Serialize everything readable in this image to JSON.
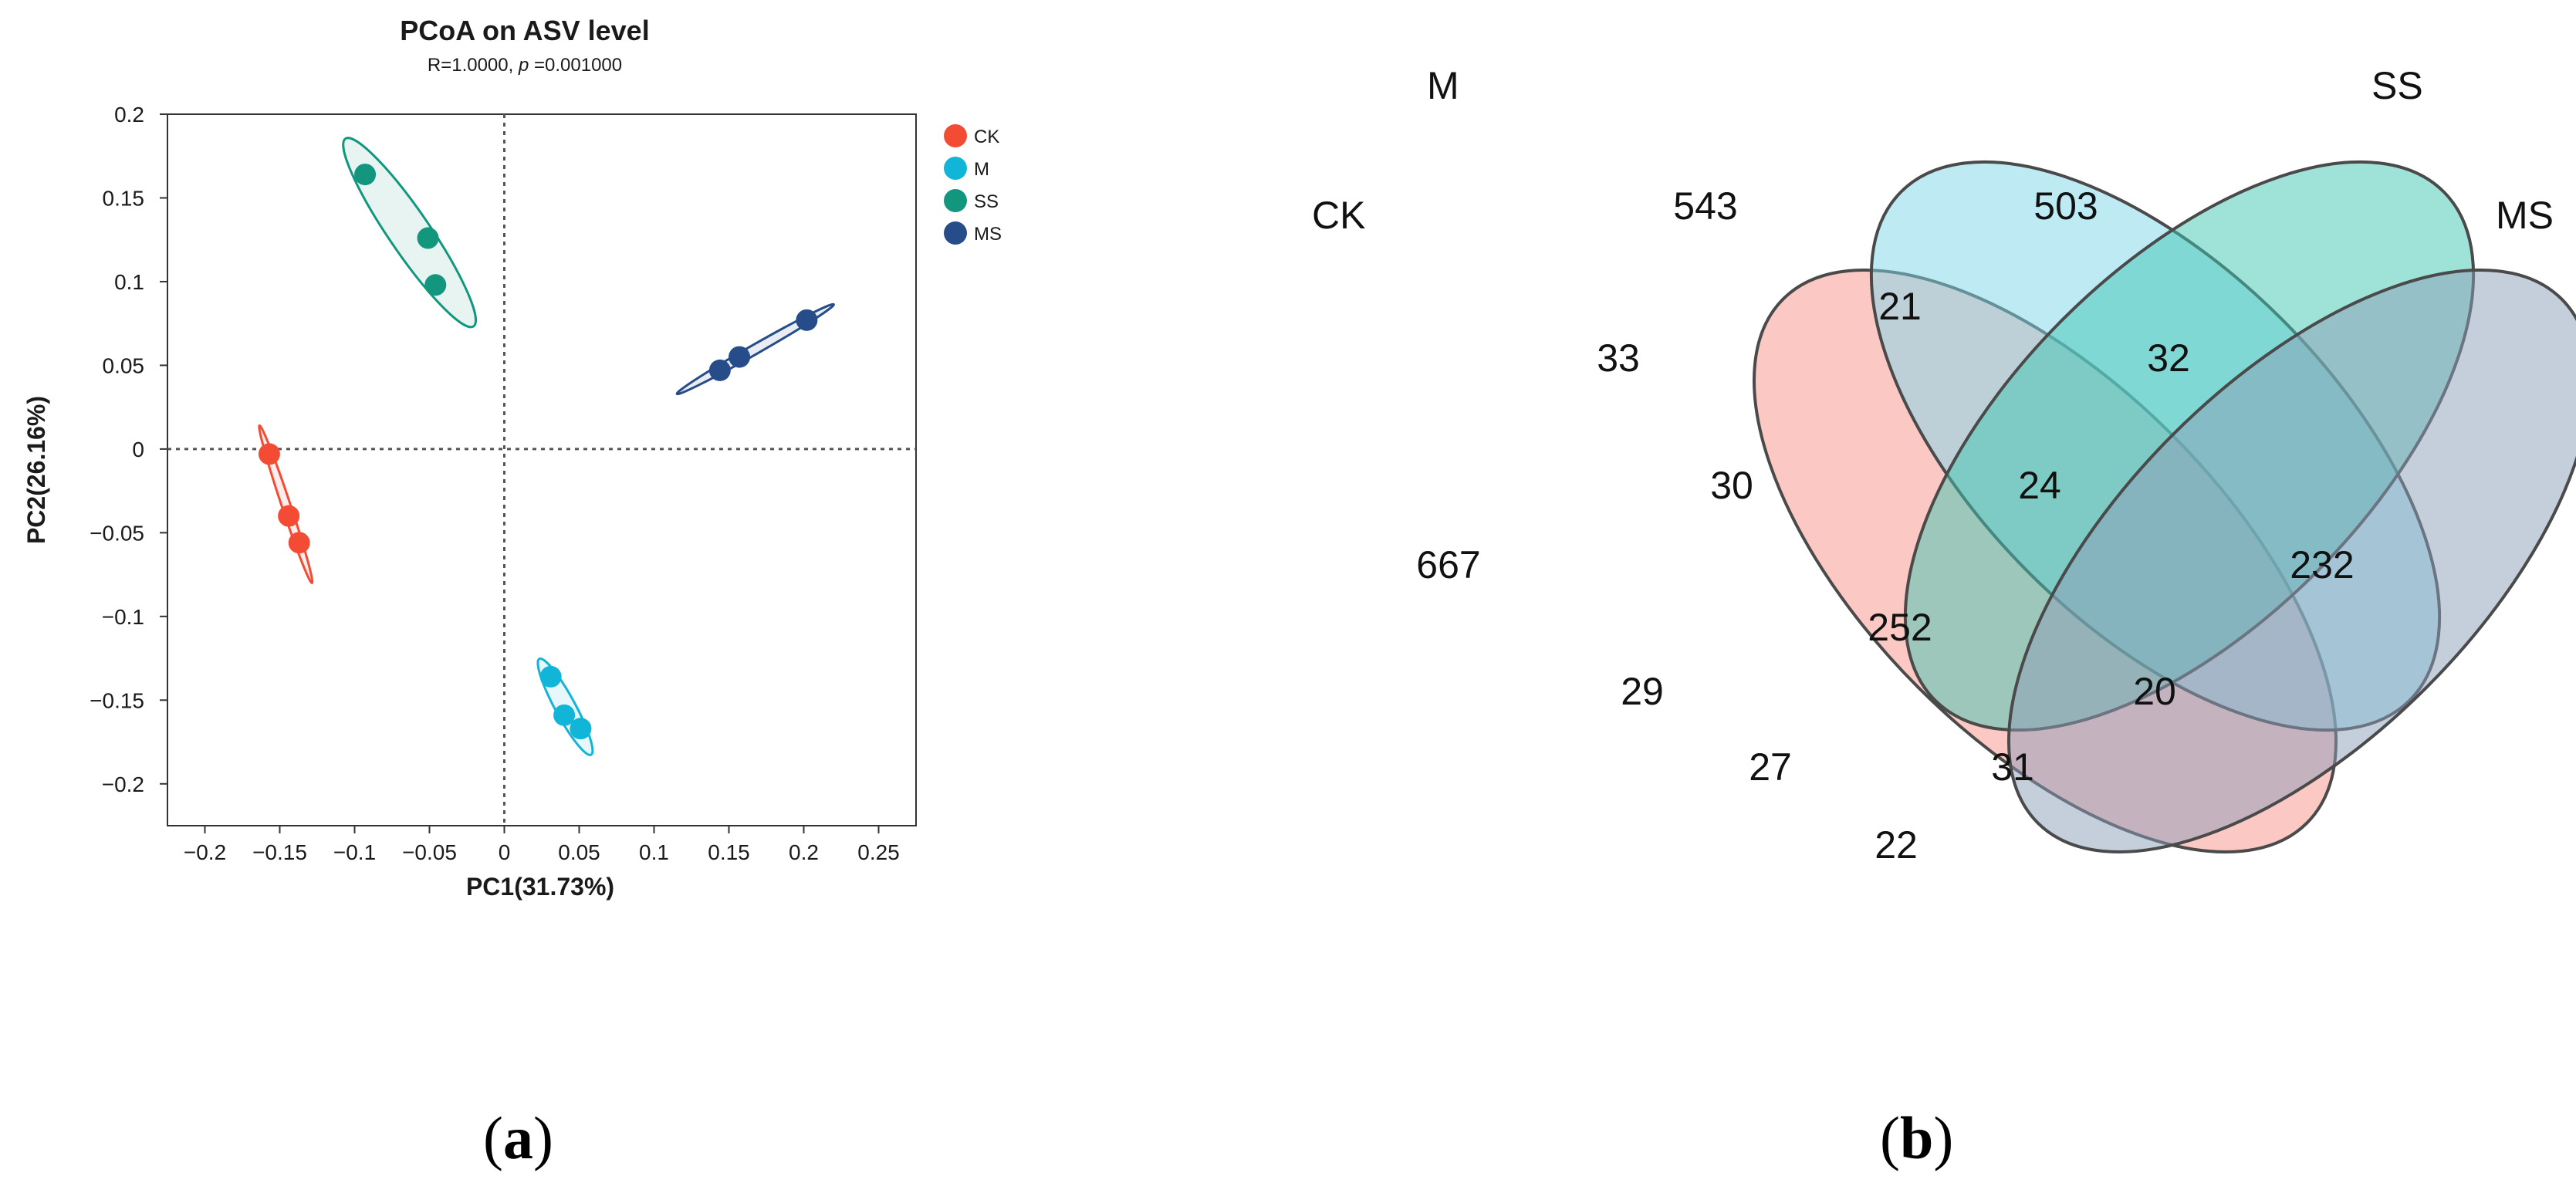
{
  "colors": {
    "CK": "#F44B34",
    "M": "#11B5D8",
    "SS": "#12977E",
    "MS": "#264C8A",
    "venn_CK": "#F9928A",
    "venn_M": "#7DD6EA",
    "venn_SS": "#3FC6B2",
    "venn_MS": "#8C9DB7"
  },
  "chart_data": [
    {
      "type": "scatter",
      "title": "PCoA on ASV level",
      "subtitle_prefix": "R=1.0000, ",
      "subtitle_p": "p",
      "subtitle_suffix": " =0.001000",
      "xlabel": "PC1(31.73%)",
      "ylabel": "PC2(26.16%)",
      "xlim": [
        -0.225,
        0.275
      ],
      "ylim": [
        -0.225,
        0.2
      ],
      "xticks": [
        -0.2,
        -0.15,
        -0.1,
        -0.05,
        0,
        0.05,
        0.1,
        0.15,
        0.2,
        0.25
      ],
      "xtick_labels": [
        "−0.2",
        "−0.15",
        "−0.1",
        "−0.05",
        "0",
        "0.05",
        "0.1",
        "0.15",
        "0.2",
        "0.25"
      ],
      "yticks": [
        0.2,
        0.15,
        0.1,
        0.05,
        0,
        -0.05,
        -0.1,
        -0.15,
        -0.2
      ],
      "ytick_labels": [
        "0.2",
        "0.15",
        "0.1",
        "0.05",
        "0",
        "−0.05",
        "−0.1",
        "−0.15",
        "−0.2"
      ],
      "reference_lines": {
        "x": 0,
        "y": 0,
        "style": "dotted"
      },
      "legend_position": "top-right outside",
      "series": [
        {
          "name": "CK",
          "points": [
            [
              -0.157,
              -0.003
            ],
            [
              -0.144,
              -0.04
            ],
            [
              -0.137,
              -0.056
            ]
          ]
        },
        {
          "name": "M",
          "points": [
            [
              0.031,
              -0.136
            ],
            [
              0.04,
              -0.159
            ],
            [
              0.051,
              -0.167
            ]
          ]
        },
        {
          "name": "SS",
          "points": [
            [
              -0.093,
              0.164
            ],
            [
              -0.051,
              0.126
            ],
            [
              -0.046,
              0.098
            ]
          ]
        },
        {
          "name": "MS",
          "points": [
            [
              0.144,
              0.047
            ],
            [
              0.157,
              0.055
            ],
            [
              0.202,
              0.077
            ]
          ]
        }
      ]
    },
    {
      "type": "venn",
      "sets": [
        "CK",
        "M",
        "SS",
        "MS"
      ],
      "regions": [
        {
          "sets": [
            "CK"
          ],
          "value": 667
        },
        {
          "sets": [
            "M"
          ],
          "value": 543
        },
        {
          "sets": [
            "SS"
          ],
          "value": 503
        },
        {
          "sets": [
            "MS"
          ],
          "value": 232
        },
        {
          "sets": [
            "M",
            "SS"
          ],
          "value": 21
        },
        {
          "sets": [
            "CK",
            "M"
          ],
          "value": 33
        },
        {
          "sets": [
            "SS",
            "MS"
          ],
          "value": 32
        },
        {
          "sets": [
            "CK",
            "M",
            "SS"
          ],
          "value": 30
        },
        {
          "sets": [
            "M",
            "SS",
            "MS"
          ],
          "value": 24
        },
        {
          "sets": [
            "CK",
            "M",
            "SS",
            "MS"
          ],
          "value": 252
        },
        {
          "sets": [
            "CK",
            "SS"
          ],
          "value": 29
        },
        {
          "sets": [
            "M",
            "MS"
          ],
          "value": 20
        },
        {
          "sets": [
            "CK",
            "SS",
            "MS"
          ],
          "value": 27
        },
        {
          "sets": [
            "CK",
            "M",
            "MS"
          ],
          "value": 31
        },
        {
          "sets": [
            "CK",
            "MS"
          ],
          "value": 22
        }
      ]
    }
  ],
  "panel_labels": {
    "a": "a",
    "b": "b",
    "open": "(",
    "close": ")"
  }
}
